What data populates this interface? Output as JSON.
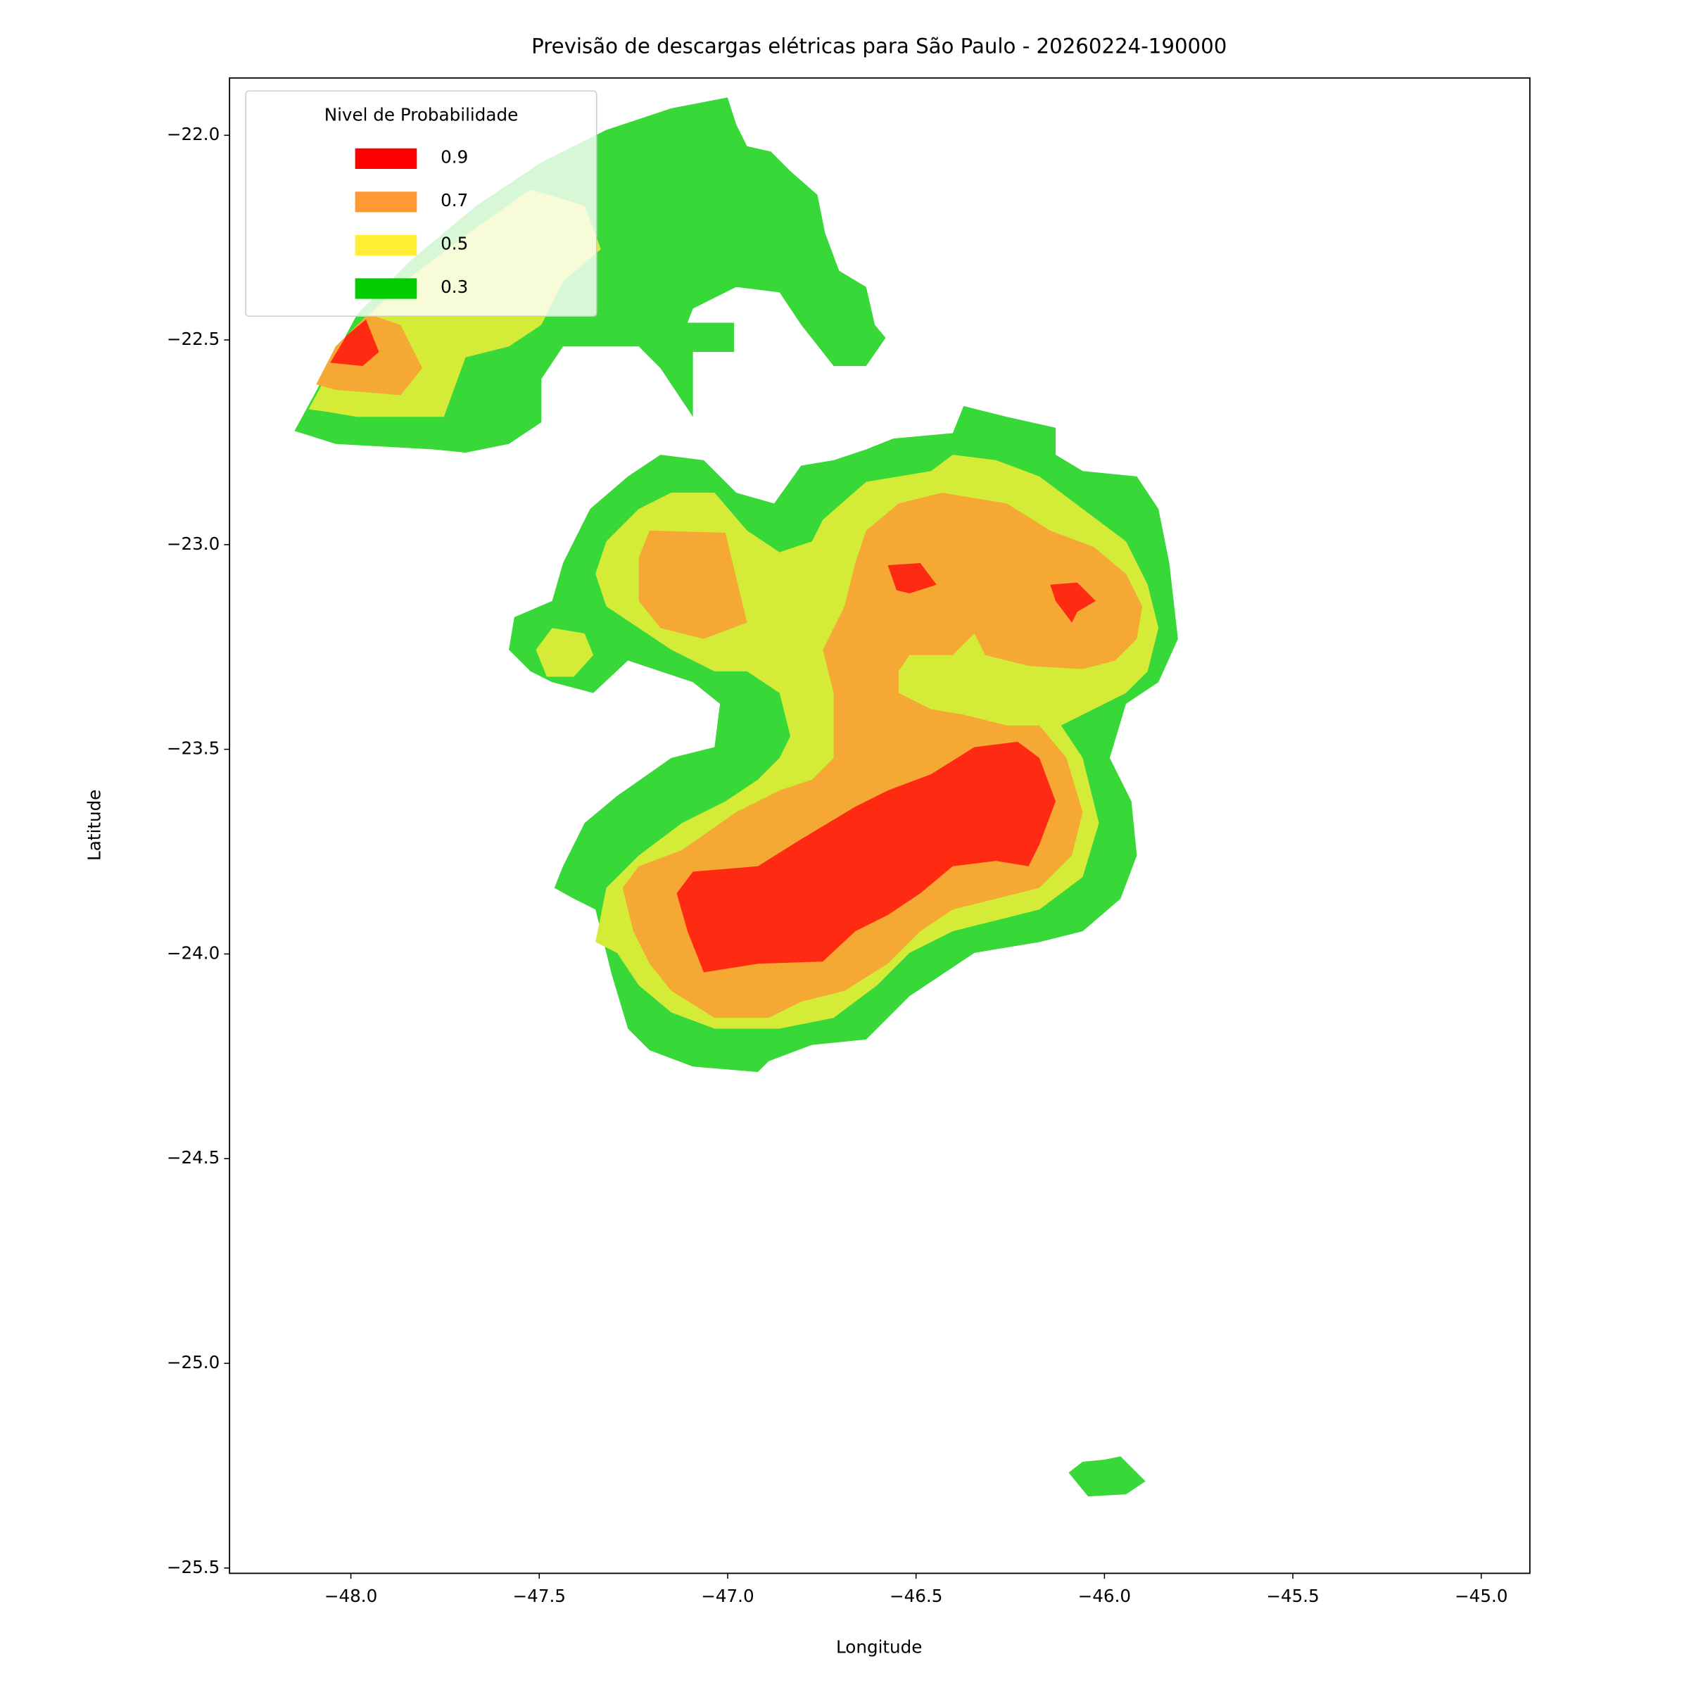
{
  "chart_data": {
    "type": "contour",
    "title": "Previsão de descargas elétricas para São Paulo - 20260224-190000",
    "x_label": "Longitude",
    "y_label": "Latitude",
    "xlim": [
      -48.322,
      -44.871
    ],
    "ylim": [
      -25.513,
      -21.86
    ],
    "xticks": [
      {
        "value": -48,
        "label": "−48.0"
      },
      {
        "value": -47.5,
        "label": "−47.5"
      },
      {
        "value": -47,
        "label": "−47.0"
      },
      {
        "value": -46.5,
        "label": "−46.5"
      },
      {
        "value": -46,
        "label": "−46.0"
      },
      {
        "value": -45.5,
        "label": "−45.5"
      },
      {
        "value": -45,
        "label": "−45.0"
      }
    ],
    "yticks": [
      {
        "value": -22,
        "label": "−22.0"
      },
      {
        "value": -22.5,
        "label": "−22.5"
      },
      {
        "value": -23,
        "label": "−23.0"
      },
      {
        "value": -23.5,
        "label": "−23.5"
      },
      {
        "value": -24,
        "label": "−24.0"
      },
      {
        "value": -24.5,
        "label": "−24.5"
      },
      {
        "value": -25,
        "label": "−25.0"
      },
      {
        "value": -25.5,
        "label": "−25.5"
      }
    ],
    "legend": {
      "title": "Nivel de Probabilidade",
      "position": "upper left",
      "entries": [
        {
          "label": "0.9",
          "color": "#ff0000"
        },
        {
          "label": "0.7",
          "color": "#ff9933"
        },
        {
          "label": "0.5",
          "color": "#ffee33"
        },
        {
          "label": "0.3",
          "color": "#00cc00"
        }
      ]
    }
  }
}
